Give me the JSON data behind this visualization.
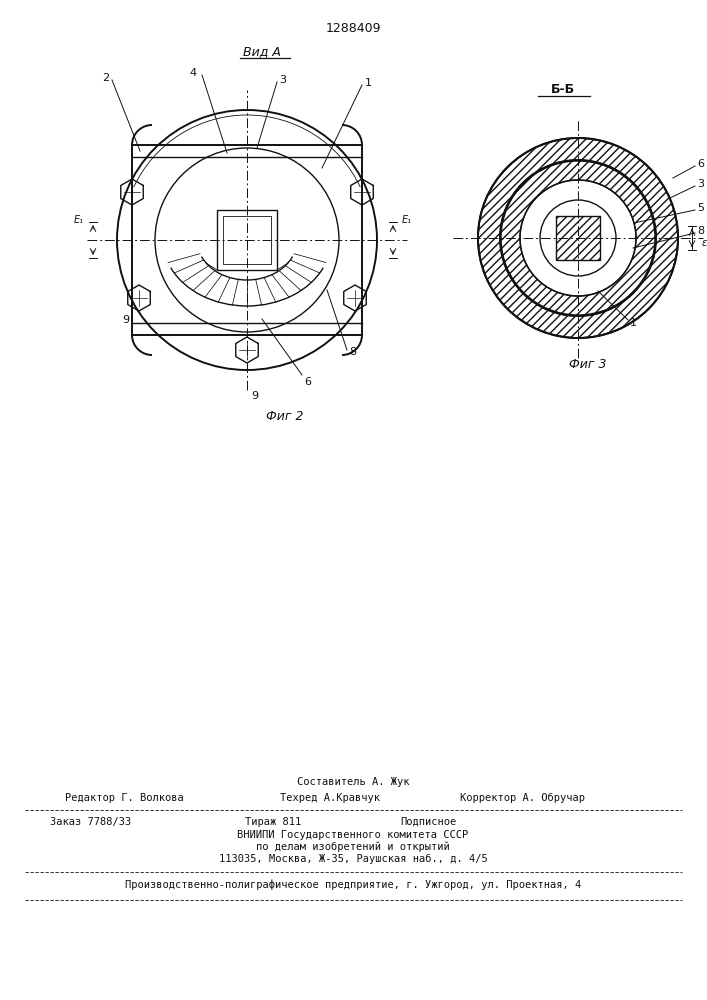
{
  "patent_number": "1288409",
  "bg_color": "#ffffff",
  "line_color": "#1a1a1a",
  "fig2_label": "Фиг 2",
  "fig3_label": "Фиг 3",
  "view_a_label": "Вид А",
  "view_bb_label": "Б-Б",
  "footer_line1": "Составитель А. Жук",
  "footer_line2a": "Редактор Г. Волкова",
  "footer_line2b": "Техред А.Кравчук",
  "footer_line2c": "Корректор А. Обручар",
  "footer_line3a": "Заказ 7788/33",
  "footer_line3b": "Тираж 811",
  "footer_line3c": "Подписное",
  "footer_line4": "ВНИИПИ Государственного комитета СССР",
  "footer_line5": "по делам изобретений и открытий",
  "footer_line6": "113035, Москва, Ж-35, Раушская наб., д. 4/5",
  "footer_line7": "Производственно-полиграфическое предприятие, г. Ужгород, ул. Проектная, 4"
}
